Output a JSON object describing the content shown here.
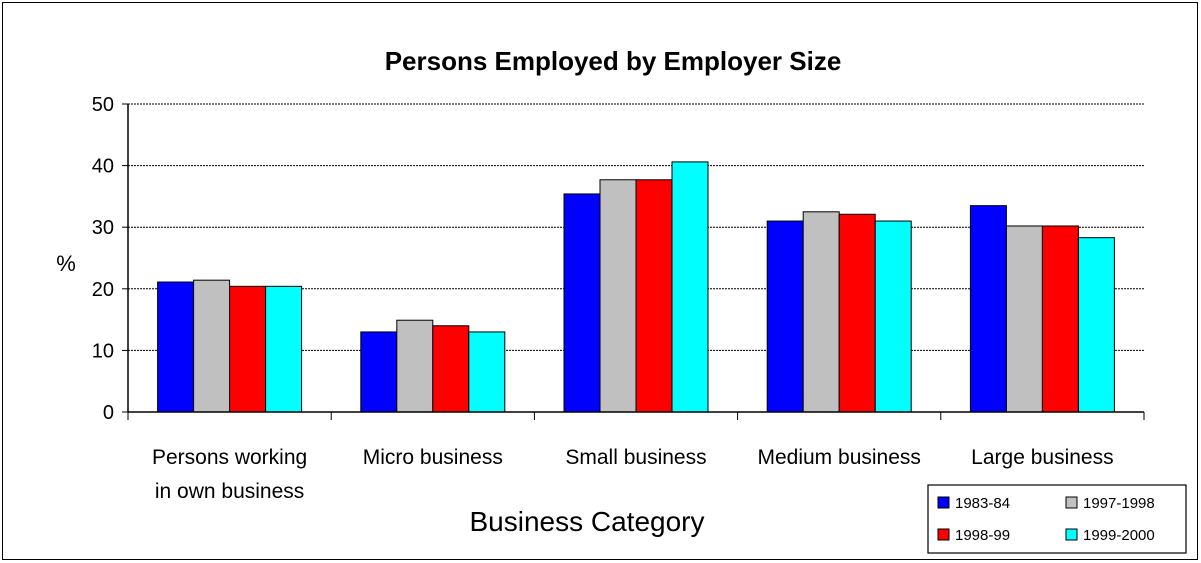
{
  "chart_data": {
    "type": "bar",
    "title": "Persons Employed by Employer Size",
    "xlabel": "Business Category",
    "ylabel": "%",
    "ylim": [
      0,
      50
    ],
    "yticks": [
      0,
      10,
      20,
      30,
      40,
      50
    ],
    "grid": true,
    "legend_position": "bottom-right",
    "categories": [
      [
        "Persons working",
        "in own business"
      ],
      [
        "Micro business"
      ],
      [
        "Small business"
      ],
      [
        "Medium business"
      ],
      [
        "Large business"
      ]
    ],
    "series": [
      {
        "name": "1983-84",
        "color": "#0000ff",
        "values": [
          21.1,
          13.0,
          35.4,
          31.0,
          33.5
        ]
      },
      {
        "name": "1997-1998",
        "color": "#c0c0c0",
        "values": [
          21.4,
          14.9,
          37.7,
          32.5,
          30.2
        ]
      },
      {
        "name": "1998-99",
        "color": "#ff0000",
        "values": [
          20.4,
          14.0,
          37.7,
          32.1,
          30.2
        ]
      },
      {
        "name": "1999-2000",
        "color": "#00ffff",
        "values": [
          20.4,
          13.0,
          40.6,
          31.0,
          28.3
        ]
      }
    ]
  }
}
